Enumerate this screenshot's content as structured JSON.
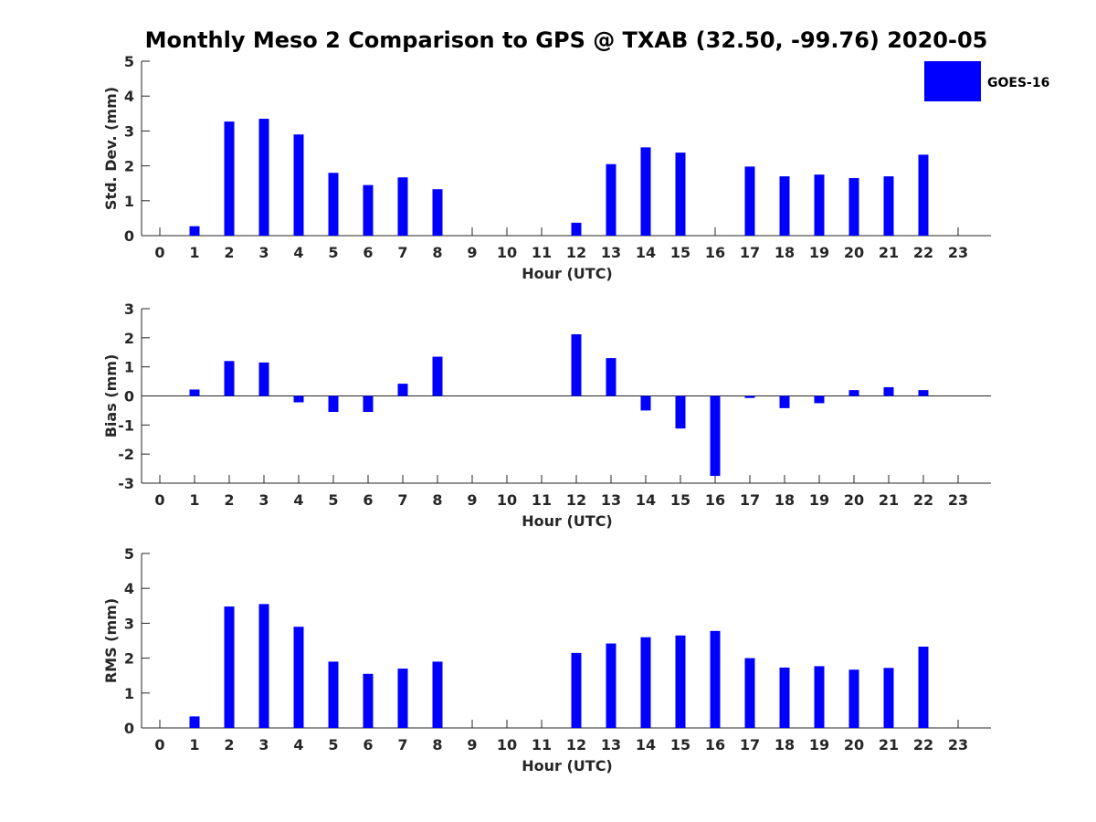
{
  "chart_data": {
    "title": "Monthly Meso 2 Comparison to GPS @ TXAB (32.50, -99.76) 2020-05",
    "legend": {
      "label": "GOES-16",
      "color": "#0000ff",
      "position": "top-right"
    },
    "hours": [
      "0",
      "1",
      "2",
      "3",
      "4",
      "5",
      "6",
      "7",
      "8",
      "9",
      "10",
      "11",
      "12",
      "13",
      "14",
      "15",
      "16",
      "17",
      "18",
      "19",
      "20",
      "21",
      "22",
      "23"
    ],
    "panels": [
      {
        "type": "bar",
        "ylabel": "Std. Dev. (mm)",
        "xlabel": "Hour (UTC)",
        "ylim": [
          0,
          5
        ],
        "yticks": [
          0,
          1,
          2,
          3,
          4,
          5
        ],
        "values": [
          null,
          0.27,
          3.27,
          3.35,
          2.9,
          1.8,
          1.45,
          1.67,
          1.33,
          null,
          null,
          null,
          0.37,
          2.05,
          2.53,
          2.38,
          null,
          1.98,
          1.7,
          1.75,
          1.65,
          1.7,
          2.32,
          null
        ]
      },
      {
        "type": "bar",
        "ylabel": "Bias (mm)",
        "xlabel": "Hour (UTC)",
        "ylim": [
          -3,
          3
        ],
        "yticks": [
          -3,
          -2,
          -1,
          0,
          1,
          2,
          3
        ],
        "values": [
          null,
          0.22,
          1.2,
          1.15,
          -0.22,
          -0.55,
          -0.55,
          0.42,
          1.35,
          null,
          null,
          null,
          2.12,
          1.3,
          -0.5,
          -1.12,
          -2.75,
          -0.07,
          -0.42,
          -0.25,
          0.2,
          0.3,
          0.2,
          null
        ]
      },
      {
        "type": "bar",
        "ylabel": "RMS (mm)",
        "xlabel": "Hour (UTC)",
        "ylim": [
          0,
          5
        ],
        "yticks": [
          0,
          1,
          2,
          3,
          4,
          5
        ],
        "values": [
          null,
          0.33,
          3.48,
          3.55,
          2.9,
          1.9,
          1.55,
          1.7,
          1.9,
          null,
          null,
          null,
          2.15,
          2.42,
          2.6,
          2.65,
          2.78,
          2.0,
          1.73,
          1.77,
          1.67,
          1.72,
          2.33,
          null
        ]
      }
    ]
  }
}
